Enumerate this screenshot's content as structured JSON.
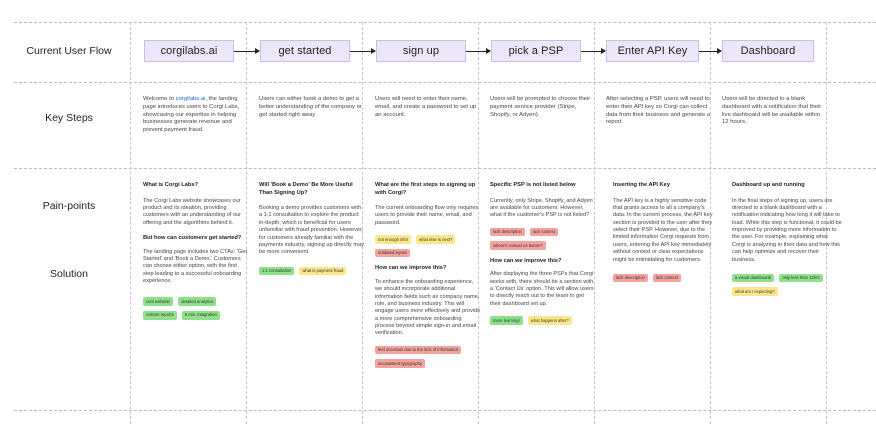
{
  "rows": {
    "current_user_flow": "Current User Flow",
    "key_steps": "Key Steps",
    "pain_points": "Pain-points",
    "solution": "Solution"
  },
  "flow": [
    "corgilabs.ai",
    "get started",
    "sign up",
    "pick a PSP",
    "Enter API Key",
    "Dashboard"
  ],
  "key_steps": [
    {
      "before": "Welcome to ",
      "link": "corgilabs.ai",
      "after": ", the landing page introduces users to Corgi Labs, showcasing our expertise in helping businesses generate revenue and prevent payment fraud."
    },
    {
      "text": "Users can either book a demo to get a better understanding of the company or get started right away"
    },
    {
      "text": "Users will need to enter their name, email, and create a password to set up an account."
    },
    {
      "text": "Users will be prompted to choose their payment service provider (Stripe, Shopify, or Adyen)."
    },
    {
      "text": "After selecting a PSP, users will need to enter their API key so Corgi can collect data from their business and generate a report."
    },
    {
      "text": "Users will be directed to a blank dashboard with a notification that their live dashboard will be available within 12 hours."
    }
  ],
  "details": [
    {
      "heading": "What is Corgi Labs?",
      "body": "The Corgi Labs website showcases our product and its ideation, providing customers with an understanding of our offering and the algorithms behind it.",
      "heading2": "But how can customers get started?",
      "body2": "The landing page includes two CTAs: 'Get Started' and 'Book a Demo.' Customers can choose either option, with the first step leading to a successful onboarding experience.",
      "tags": [
        {
          "label": "cool website!",
          "color": "green"
        },
        {
          "label": "detailed analytics",
          "color": "green"
        },
        {
          "label": "custom reports",
          "color": "green"
        },
        {
          "label": "5 min. integration",
          "color": "green"
        }
      ]
    },
    {
      "heading": "Will 'Book a Demo' Be More Useful Than Signing Up?",
      "body": "Booking a demo provides customers with a 1:1 consultation to explore the product in-depth, which is beneficial for users unfamiliar with fraud prevention. However, for customers already familiar with the payments industry, signing up directly may be more convenient.",
      "tags": [
        {
          "label": "1:1 consultation",
          "color": "green"
        },
        {
          "label": "what is payment fraud",
          "color": "yellow"
        }
      ]
    },
    {
      "heading": "What are the first steps to signing up with Corgi?",
      "body": "The current onboarding flow only requires users to provide their name, email, and password.",
      "tags": [
        {
          "label": "not enough info!",
          "color": "yellow"
        },
        {
          "label": "what else is next?",
          "color": "yellow"
        },
        {
          "label": "outdated layout",
          "color": "red"
        }
      ],
      "heading2": "How can we improve this?",
      "body2": "To enhance the onboarding experience, we should incorporate additional information fields such as company name, role, and business industry. This will engage users more effectively and provide a more comprehensive onboarding process beyond simple sign-in and email verification.",
      "tags2": [
        {
          "label": "feel uncertain due to the lack of information",
          "color": "red"
        },
        {
          "label": "inconsistent typography",
          "color": "red"
        }
      ]
    },
    {
      "heading": "Specific PSP is not listed below",
      "body": "Currently, only Stripe, Shopify, and Adyen are available for customers. However, what if the customer's PSP is not listed?",
      "tags": [
        {
          "label": "lack description",
          "color": "red"
        },
        {
          "label": "lack context",
          "color": "red"
        },
        {
          "label": "where's contact us button?",
          "color": "red"
        }
      ],
      "heading2": "How can we improve this?",
      "body2": "After displaying the three PSPs that Corgi works with, there should be a section with a 'Contact Us' option. This will allow users to directly reach out to the team to get their dashboard set up.",
      "tags2": [
        {
          "label": "more learning!",
          "color": "green"
        },
        {
          "label": "what happens after?",
          "color": "yellow"
        }
      ]
    },
    {
      "heading": "Inserting the API Key",
      "body": "The API key is a highly sensitive code that grants access to all a company's data. In the current process, the API key section is provided to the user after they select their PSP. However, due to the limited information Corgi requests from users, entering the API key immediately without context or clear expectations might be intimidating for customers.",
      "tags": [
        {
          "label": "lack description",
          "color": "red"
        },
        {
          "label": "lack context",
          "color": "red"
        }
      ]
    },
    {
      "heading": "Dashboard up and running",
      "body": "In the final steps of signing up, users are directed to a blank dashboard with a notification indicating how long it will take to load. While this step is functional, it could be improved by providing more information to the user. For example, explaining what Corgi is analyzing in their data and how this can help optimize and recover their business.",
      "tags": [
        {
          "label": "a visual dashboard!",
          "color": "green"
        },
        {
          "label": "only less than 12hrs",
          "color": "green"
        },
        {
          "label": "what am I expecting?",
          "color": "yellow"
        }
      ]
    }
  ]
}
